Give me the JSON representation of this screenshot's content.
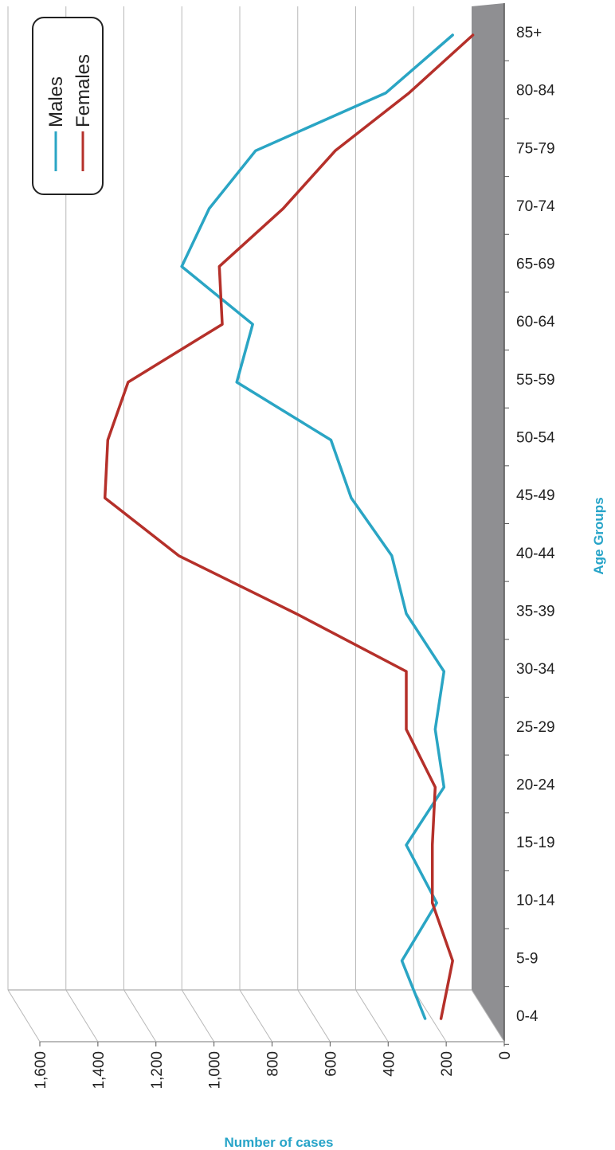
{
  "chart_data": {
    "type": "line",
    "orientation": "rotated",
    "style": "3d",
    "xlabel": "Age Groups",
    "ylabel": "Number of cases",
    "categories": [
      "0-4",
      "5-9",
      "10-14",
      "15-19",
      "20-24",
      "25-29",
      "30-34",
      "35-39",
      "40-44",
      "45-49",
      "50-54",
      "55-59",
      "60-64",
      "65-69",
      "70-74",
      "75-79",
      "80-84",
      "85+"
    ],
    "y_ticks": [
      "0",
      "200",
      "400",
      "600",
      "800",
      "1,000",
      "1,200",
      "1,400",
      "1,600"
    ],
    "ylim": [
      0,
      1600
    ],
    "grid": true,
    "legend_position": "top-left",
    "series": [
      {
        "name": "Males",
        "color": "#2aa5c4",
        "values": [
          265,
          345,
          225,
          330,
          200,
          230,
          200,
          330,
          380,
          520,
          590,
          915,
          860,
          1105,
          1010,
          850,
          400,
          170
        ]
      },
      {
        "name": "Females",
        "color": "#b5302a",
        "values": [
          210,
          170,
          240,
          240,
          230,
          330,
          330,
          710,
          1115,
          1370,
          1360,
          1290,
          965,
          975,
          755,
          575,
          320,
          100
        ]
      }
    ]
  }
}
